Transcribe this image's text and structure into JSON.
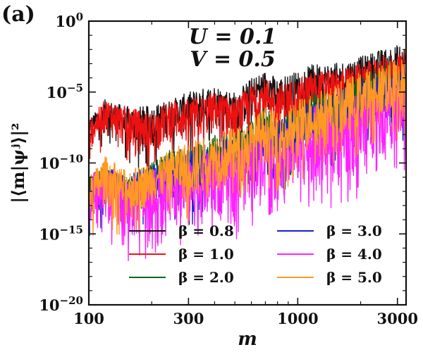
{
  "chart_data": {
    "type": "line",
    "panel_label": "(a)",
    "xlabel": "m",
    "ylabel": "|⟨m|ψʲ⟩|²",
    "xscale": "log",
    "yscale": "log",
    "xlim": [
      100,
      3300
    ],
    "ylim": [
      1e-20,
      1.0
    ],
    "xticks": [
      {
        "value": 100,
        "label": "100"
      },
      {
        "value": 300,
        "label": "300"
      },
      {
        "value": 1000,
        "label": "1000"
      },
      {
        "value": 3000,
        "label": "3000"
      }
    ],
    "yticks": [
      {
        "exp": 0,
        "base": "10",
        "sup": "0"
      },
      {
        "exp": -5,
        "base": "10",
        "sup": "−5"
      },
      {
        "exp": -10,
        "base": "10",
        "sup": "−10"
      },
      {
        "exp": -15,
        "base": "10",
        "sup": "−15"
      },
      {
        "exp": -20,
        "base": "10",
        "sup": "−20"
      }
    ],
    "annotations": [
      "U = 0.1",
      "V = 0.5"
    ],
    "legend_location": "lower-center",
    "series": [
      {
        "name": "β = 0.8",
        "color": "#111111",
        "x": [
          100,
          120,
          150,
          200,
          250,
          300,
          400,
          500,
          600,
          700,
          800,
          1000,
          1200,
          1500,
          2000,
          2500,
          3300
        ],
        "y_upper_exp": [
          -7,
          -5.5,
          -6,
          -6,
          -5.5,
          -5,
          -4.5,
          -5,
          -4,
          -3.5,
          -4,
          -3.5,
          -3,
          -3,
          -2.5,
          -2,
          -1.5
        ],
        "y_lower_exp": [
          -8,
          -8,
          -9,
          -9,
          -8,
          -8,
          -7.5,
          -8,
          -7,
          -6,
          -7,
          -7,
          -6,
          -6,
          -6,
          -5,
          -5
        ]
      },
      {
        "name": "β = 1.0",
        "color": "#ee1111",
        "x": [
          100,
          120,
          150,
          200,
          250,
          300,
          400,
          500,
          600,
          700,
          800,
          1000,
          1200,
          1500,
          2000,
          2500,
          3300
        ],
        "y_upper_exp": [
          -7,
          -5.5,
          -6,
          -6.5,
          -5.5,
          -5.5,
          -5,
          -5.5,
          -4.5,
          -4,
          -4.5,
          -4,
          -3.5,
          -3.5,
          -3,
          -2.5,
          -2
        ],
        "y_lower_exp": [
          -9,
          -8,
          -9,
          -9.5,
          -8.5,
          -9,
          -8,
          -8.5,
          -8,
          -7,
          -8,
          -7.5,
          -7,
          -6.5,
          -6.5,
          -6,
          -5.5
        ]
      },
      {
        "name": "β = 2.0",
        "color": "#116611",
        "x": [
          100,
          120,
          150,
          200,
          250,
          300,
          400,
          500,
          600,
          700,
          800,
          1000,
          1200,
          1500,
          2000,
          2500,
          3300
        ],
        "y_upper_exp": [
          -11,
          -10,
          -11,
          -10,
          -9,
          -9,
          -8,
          -8,
          -7,
          -6,
          -7,
          -6,
          -5,
          -5,
          -4,
          -3,
          -3
        ],
        "y_lower_exp": [
          -13,
          -12,
          -13,
          -12,
          -11.5,
          -11.5,
          -11,
          -11,
          -10,
          -9,
          -10,
          -9,
          -8,
          -8,
          -7,
          -6,
          -6
        ]
      },
      {
        "name": "β = 3.0",
        "color": "#1122cc",
        "x": [
          100,
          120,
          150,
          200,
          250,
          300,
          400,
          500,
          600,
          700,
          800,
          1000,
          1200,
          1500,
          2000,
          2500,
          3300
        ],
        "y_upper_exp": [
          -11,
          -10,
          -11,
          -10,
          -9.5,
          -9,
          -8.5,
          -8,
          -7.5,
          -6.5,
          -7,
          -6,
          -5.5,
          -5,
          -4,
          -3.5,
          -3
        ],
        "y_lower_exp": [
          -14,
          -13,
          -14,
          -13,
          -12.5,
          -13,
          -12,
          -12,
          -11,
          -10,
          -11,
          -10,
          -9,
          -9,
          -8,
          -7,
          -7
        ]
      },
      {
        "name": "β = 4.0",
        "color": "#ff22ff",
        "x": [
          100,
          120,
          150,
          200,
          250,
          300,
          400,
          500,
          600,
          700,
          800,
          1000,
          1200,
          1500,
          2000,
          2500,
          3300
        ],
        "y_upper_exp": [
          -11,
          -10,
          -11,
          -10.5,
          -10,
          -10,
          -9,
          -9,
          -8,
          -7,
          -8,
          -7,
          -6,
          -6,
          -5,
          -4,
          -4
        ],
        "y_lower_exp": [
          -15,
          -14,
          -16,
          -15,
          -14,
          -15,
          -14,
          -14,
          -13,
          -12,
          -13,
          -12,
          -11.5,
          -12,
          -11,
          -9,
          -9
        ]
      },
      {
        "name": "β = 5.0",
        "color": "#ff9922",
        "x": [
          100,
          120,
          150,
          200,
          250,
          300,
          400,
          500,
          600,
          700,
          800,
          1000,
          1200,
          1500,
          2000,
          2500,
          3300
        ],
        "y_upper_exp": [
          -11,
          -9.5,
          -10.5,
          -10,
          -9,
          -8.5,
          -8,
          -7.5,
          -7,
          -6,
          -6.5,
          -5.5,
          -5,
          -4.5,
          -3.5,
          -3,
          -2.5
        ],
        "y_lower_exp": [
          -14,
          -13,
          -14,
          -13,
          -12.5,
          -13,
          -12,
          -12,
          -11,
          -10,
          -11,
          -10,
          -9,
          -9,
          -8,
          -7,
          -7
        ]
      }
    ]
  }
}
